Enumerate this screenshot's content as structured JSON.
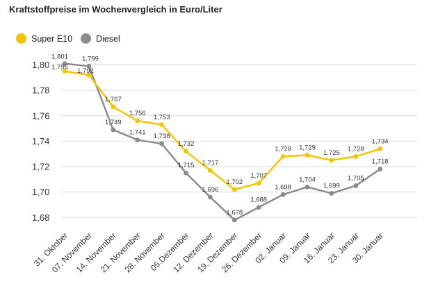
{
  "chart_data": {
    "type": "line",
    "title": "Kraftstoffpreise im Wochenvergleich in Euro/Liter",
    "categories": [
      "31. Oktober",
      "07. November",
      "14. November",
      "21. November",
      "28. November",
      "05.Dezember",
      "12. Dezember",
      "19. Dezember",
      "26. Dezember",
      "02. Januar",
      "09. Januar",
      "16. Januar",
      "23. Januar",
      "30. Januar"
    ],
    "series": [
      {
        "name": "Super E10",
        "color": "#f2c500",
        "values": [
          1.795,
          1.792,
          1.767,
          1.756,
          1.753,
          1.732,
          1.717,
          1.702,
          1.707,
          1.728,
          1.729,
          1.725,
          1.728,
          1.734
        ],
        "labels": [
          "1,795",
          "1,792",
          "1,767",
          "1,756",
          "1,753",
          "1,732",
          "1,717",
          "1,702",
          "1,707",
          "1,728",
          "1,729",
          "1,725",
          "1,728",
          "1,734"
        ]
      },
      {
        "name": "Diesel",
        "color": "#8c8c8c",
        "values": [
          1.801,
          1.799,
          1.749,
          1.741,
          1.738,
          1.715,
          1.696,
          1.678,
          1.688,
          1.698,
          1.704,
          1.699,
          1.705,
          1.718
        ],
        "labels": [
          "1,801",
          "1,799",
          "1,749",
          "1,741",
          "1,738",
          "1,715",
          "1,696",
          "1,678",
          "1,688",
          "1,698",
          "1,704",
          "1,699",
          "1,705",
          "1,718"
        ]
      }
    ],
    "ylim": [
      1.67,
      1.81
    ],
    "yticks": [
      1.68,
      1.7,
      1.72,
      1.74,
      1.76,
      1.78,
      1.8
    ],
    "ytick_labels": [
      "1,68",
      "1,70",
      "1,72",
      "1,74",
      "1,76",
      "1,78",
      "1,80"
    ],
    "grid": true,
    "legend_position": "top-left"
  }
}
